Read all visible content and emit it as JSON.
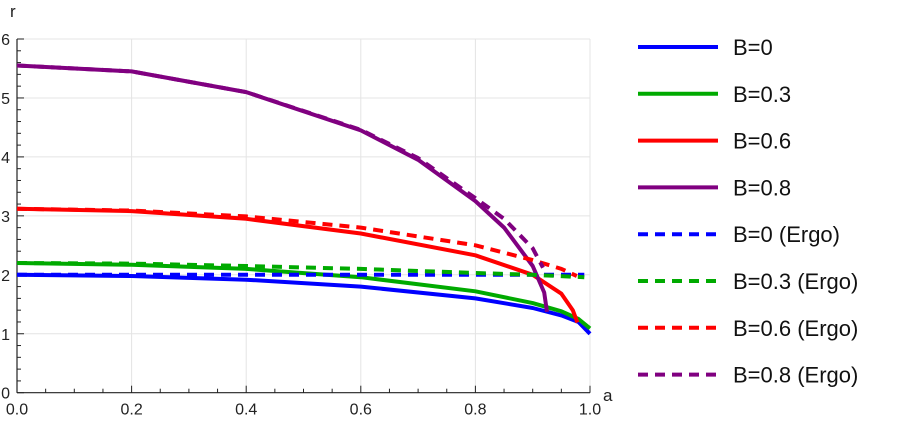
{
  "chart_data": {
    "type": "line",
    "title": "",
    "xlabel": "a",
    "ylabel": "r",
    "xlim": [
      0,
      1
    ],
    "ylim": [
      0,
      6
    ],
    "grid": true,
    "legend_placement": "right",
    "x_ticks": [
      "0.0",
      "0.2",
      "0.4",
      "0.6",
      "0.8",
      "1.0"
    ],
    "y_ticks": [
      "0",
      "1",
      "2",
      "3",
      "4",
      "5",
      "6"
    ],
    "series": [
      {
        "name": "B=0",
        "color": "#0000ff",
        "dashed": false,
        "x": [
          0,
          0.2,
          0.4,
          0.6,
          0.8,
          0.9,
          0.95,
          0.98,
          1.0
        ],
        "y": [
          2.0,
          1.98,
          1.917,
          1.8,
          1.6,
          1.436,
          1.312,
          1.199,
          1.0
        ]
      },
      {
        "name": "B=0.3",
        "color": "#00aa00",
        "dashed": false,
        "x": [
          0,
          0.2,
          0.4,
          0.6,
          0.8,
          0.9,
          0.95,
          0.98,
          1.0
        ],
        "y": [
          2.2,
          2.17,
          2.1,
          1.96,
          1.72,
          1.52,
          1.38,
          1.25,
          1.09
        ]
      },
      {
        "name": "B=0.6",
        "color": "#ff0000",
        "dashed": false,
        "x": [
          0,
          0.2,
          0.4,
          0.6,
          0.8,
          0.9,
          0.95,
          0.97,
          0.978
        ],
        "y": [
          3.12,
          3.08,
          2.95,
          2.7,
          2.33,
          2.0,
          1.68,
          1.4,
          1.19
        ]
      },
      {
        "name": "B=0.8",
        "color": "#800080",
        "dashed": false,
        "x": [
          0,
          0.2,
          0.4,
          0.6,
          0.7,
          0.8,
          0.85,
          0.9,
          0.92,
          0.925
        ],
        "y": [
          5.55,
          5.45,
          5.1,
          4.45,
          3.95,
          3.25,
          2.8,
          2.15,
          1.7,
          1.37
        ]
      },
      {
        "name": "B=0 (Ergo)",
        "color": "#0000ff",
        "dashed": true,
        "x": [
          0,
          0.5,
          0.99
        ],
        "y": [
          2.0,
          2.0,
          2.0
        ]
      },
      {
        "name": "B=0.3 (Ergo)",
        "color": "#00aa00",
        "dashed": true,
        "x": [
          0,
          0.2,
          0.4,
          0.6,
          0.8,
          0.9,
          0.99
        ],
        "y": [
          2.2,
          2.19,
          2.15,
          2.1,
          2.03,
          2.0,
          1.96
        ]
      },
      {
        "name": "B=0.6 (Ergo)",
        "color": "#ff0000",
        "dashed": true,
        "x": [
          0,
          0.2,
          0.4,
          0.6,
          0.8,
          0.9,
          0.95,
          0.977
        ],
        "y": [
          3.12,
          3.09,
          2.99,
          2.8,
          2.5,
          2.25,
          2.1,
          1.98
        ]
      },
      {
        "name": "B=0.8 (Ergo)",
        "color": "#800080",
        "dashed": true,
        "x": [
          0,
          0.2,
          0.4,
          0.6,
          0.7,
          0.8,
          0.85,
          0.9,
          0.918
        ],
        "y": [
          5.55,
          5.45,
          5.1,
          4.46,
          3.98,
          3.3,
          2.95,
          2.45,
          2.12
        ]
      }
    ]
  }
}
